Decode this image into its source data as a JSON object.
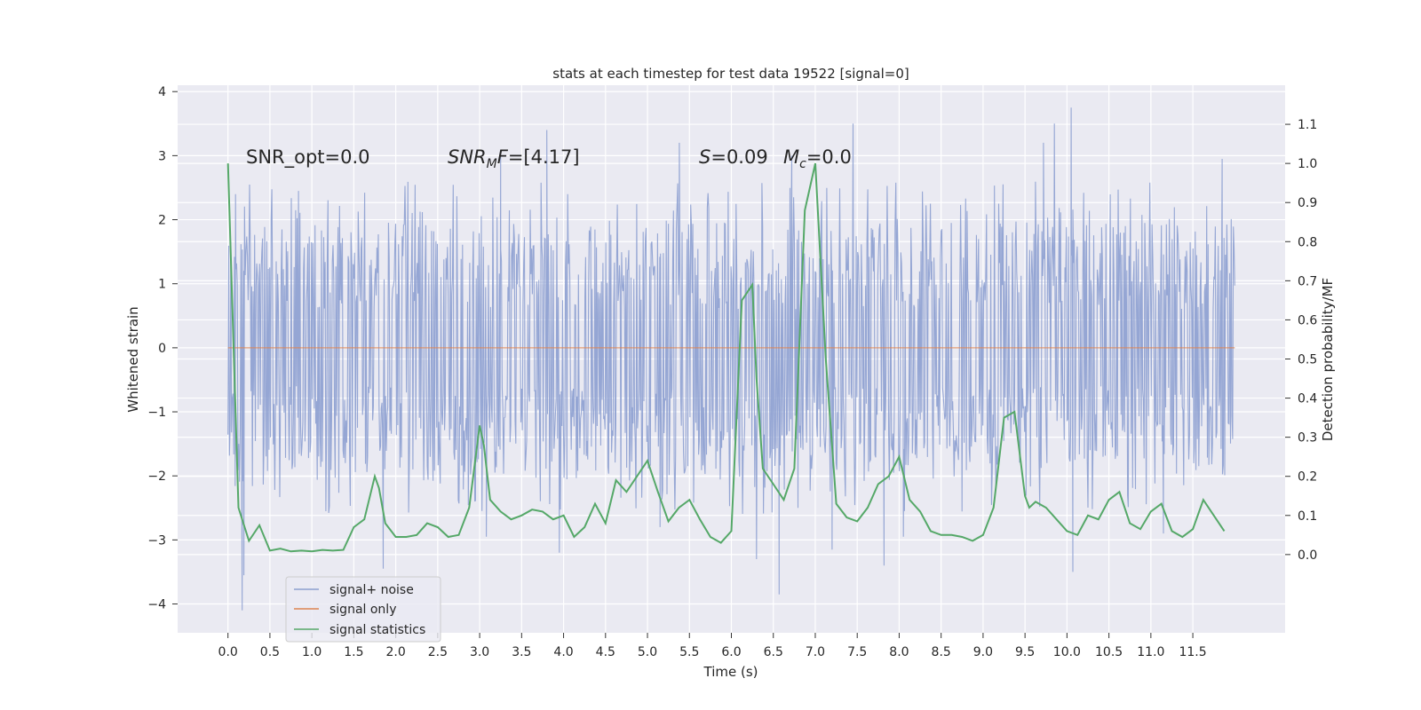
{
  "chart_data": {
    "type": "line",
    "title": "stats at each timestep for test data 19522 [signal=0]",
    "xlabel": "Time (s)",
    "ylabel_left": "Whitened strain",
    "ylabel_right": "Detection probability/MF",
    "xlim": [
      -0.6,
      12.6
    ],
    "ylim_left": [
      -4.45,
      4.1
    ],
    "ylim_right": [
      -0.2,
      1.2
    ],
    "x_ticks": [
      "0.0",
      "0.5",
      "1.0",
      "1.5",
      "2.0",
      "2.5",
      "3.0",
      "3.5",
      "4.0",
      "4.5",
      "5.0",
      "5.5",
      "6.0",
      "6.5",
      "7.0",
      "7.5",
      "8.0",
      "8.5",
      "9.0",
      "9.5",
      "10.0",
      "10.5",
      "11.0",
      "11.5"
    ],
    "y_ticks_left": [
      "4",
      "3",
      "2",
      "1",
      "0",
      "−1",
      "−2",
      "−3",
      "−4"
    ],
    "y_ticks_right": [
      "1.1",
      "1.0",
      "0.9",
      "0.8",
      "0.7",
      "0.6",
      "0.5",
      "0.4",
      "0.3",
      "0.2",
      "0.1",
      "0.0"
    ],
    "grid": true,
    "legend_position": "lower-left",
    "annotations": {
      "snr_opt": "SNR_opt=0.0",
      "snr_mf_italic": "SNR",
      "snr_mf_sub": "M",
      "snr_mf_tail": "F",
      "snr_mf_value": "=[4.17]",
      "s_italic": "S",
      "s_value": "=0.09",
      "mc_italic": "M",
      "mc_sub": "c",
      "mc_value": "=0.0"
    },
    "series": [
      {
        "name": "signal+ noise",
        "color": "#8c9fd0",
        "axis": "left",
        "description": "dense whitened noise, approx. uniform in [-1.8, 1.8] with spikes",
        "t_range": [
          0.0,
          12.0
        ],
        "n_points": 1400,
        "spikes": [
          [
            0.09,
            2.4
          ],
          [
            0.17,
            -4.1
          ],
          [
            0.19,
            -3.55
          ],
          [
            1.85,
            -3.45
          ],
          [
            3.08,
            -2.95
          ],
          [
            3.25,
            3.0
          ],
          [
            3.8,
            3.4
          ],
          [
            3.95,
            -3.2
          ],
          [
            5.15,
            -2.8
          ],
          [
            5.38,
            3.2
          ],
          [
            6.3,
            -3.3
          ],
          [
            6.57,
            -3.85
          ],
          [
            6.72,
            3.0
          ],
          [
            7.2,
            -3.15
          ],
          [
            7.45,
            3.5
          ],
          [
            7.82,
            -3.4
          ],
          [
            8.05,
            -2.95
          ],
          [
            9.72,
            3.2
          ],
          [
            9.85,
            3.5
          ],
          [
            10.05,
            3.75
          ],
          [
            10.07,
            -3.5
          ],
          [
            11.15,
            -2.9
          ],
          [
            11.85,
            2.95
          ]
        ]
      },
      {
        "name": "signal only",
        "color": "#dd8452",
        "axis": "left",
        "x": [
          0.0,
          12.0
        ],
        "y": [
          0.0,
          0.0
        ]
      },
      {
        "name": "signal statistics",
        "color": "#55a868",
        "axis": "right",
        "x": [
          0.0,
          0.125,
          0.25,
          0.375,
          0.5,
          0.625,
          0.75,
          0.875,
          1.0,
          1.125,
          1.25,
          1.375,
          1.5,
          1.625,
          1.75,
          1.8,
          1.875,
          2.0,
          2.125,
          2.25,
          2.375,
          2.5,
          2.625,
          2.75,
          2.875,
          3.0,
          3.05,
          3.125,
          3.25,
          3.375,
          3.5,
          3.625,
          3.75,
          3.875,
          4.0,
          4.125,
          4.25,
          4.375,
          4.5,
          4.625,
          4.75,
          4.875,
          5.0,
          5.125,
          5.25,
          5.375,
          5.5,
          5.625,
          5.75,
          5.875,
          6.0,
          6.125,
          6.25,
          6.3,
          6.375,
          6.5,
          6.625,
          6.75,
          6.875,
          7.0,
          7.125,
          7.25,
          7.375,
          7.5,
          7.625,
          7.75,
          7.875,
          8.0,
          8.125,
          8.25,
          8.375,
          8.5,
          8.625,
          8.75,
          8.875,
          9.0,
          9.125,
          9.25,
          9.375,
          9.5,
          9.55,
          9.625,
          9.75,
          9.875,
          10.0,
          10.125,
          10.25,
          10.375,
          10.5,
          10.625,
          10.75,
          10.875,
          11.0,
          11.125,
          11.25,
          11.375,
          11.5,
          11.625,
          11.75,
          11.875
        ],
        "y": [
          1.0,
          0.12,
          0.035,
          0.075,
          0.01,
          0.015,
          0.008,
          0.01,
          0.008,
          0.012,
          0.01,
          0.012,
          0.07,
          0.09,
          0.2,
          0.17,
          0.08,
          0.045,
          0.045,
          0.05,
          0.08,
          0.07,
          0.045,
          0.05,
          0.12,
          0.33,
          0.28,
          0.14,
          0.11,
          0.09,
          0.1,
          0.115,
          0.11,
          0.09,
          0.1,
          0.045,
          0.07,
          0.13,
          0.08,
          0.19,
          0.16,
          0.2,
          0.24,
          0.16,
          0.085,
          0.12,
          0.14,
          0.09,
          0.045,
          0.03,
          0.06,
          0.65,
          0.69,
          0.45,
          0.22,
          0.18,
          0.14,
          0.22,
          0.88,
          1.0,
          0.5,
          0.13,
          0.095,
          0.085,
          0.12,
          0.18,
          0.2,
          0.25,
          0.14,
          0.11,
          0.06,
          0.05,
          0.05,
          0.045,
          0.035,
          0.05,
          0.12,
          0.35,
          0.365,
          0.15,
          0.12,
          0.135,
          0.12,
          0.09,
          0.06,
          0.05,
          0.1,
          0.09,
          0.14,
          0.16,
          0.08,
          0.065,
          0.11,
          0.13,
          0.06,
          0.045,
          0.065,
          0.14,
          0.1,
          0.06
        ]
      }
    ]
  }
}
